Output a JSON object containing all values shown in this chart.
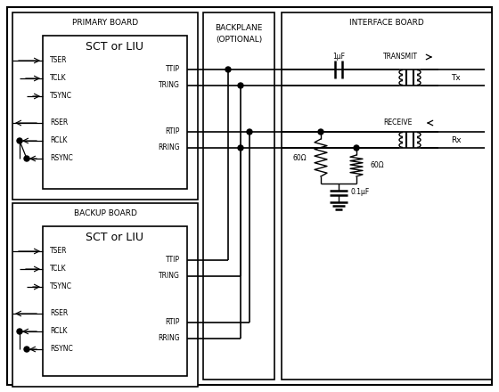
{
  "fig_width": 5.6,
  "fig_height": 4.4,
  "dpi": 100,
  "bg_color": "#ffffff",
  "primary_pins": [
    "TSER",
    "TCLK",
    "TSYNC",
    "RSER",
    "RCLK",
    "RSYNC"
  ],
  "primary_right_pins": [
    "TTIP",
    "TRING",
    "RTIP",
    "RRING"
  ],
  "backup_pins": [
    "TSER",
    "TCLK",
    "TSYNC",
    "RSER",
    "RCLK",
    "RSYNC"
  ],
  "backup_right_pins": [
    "TTIP",
    "TRING",
    "RTIP",
    "RRING"
  ]
}
